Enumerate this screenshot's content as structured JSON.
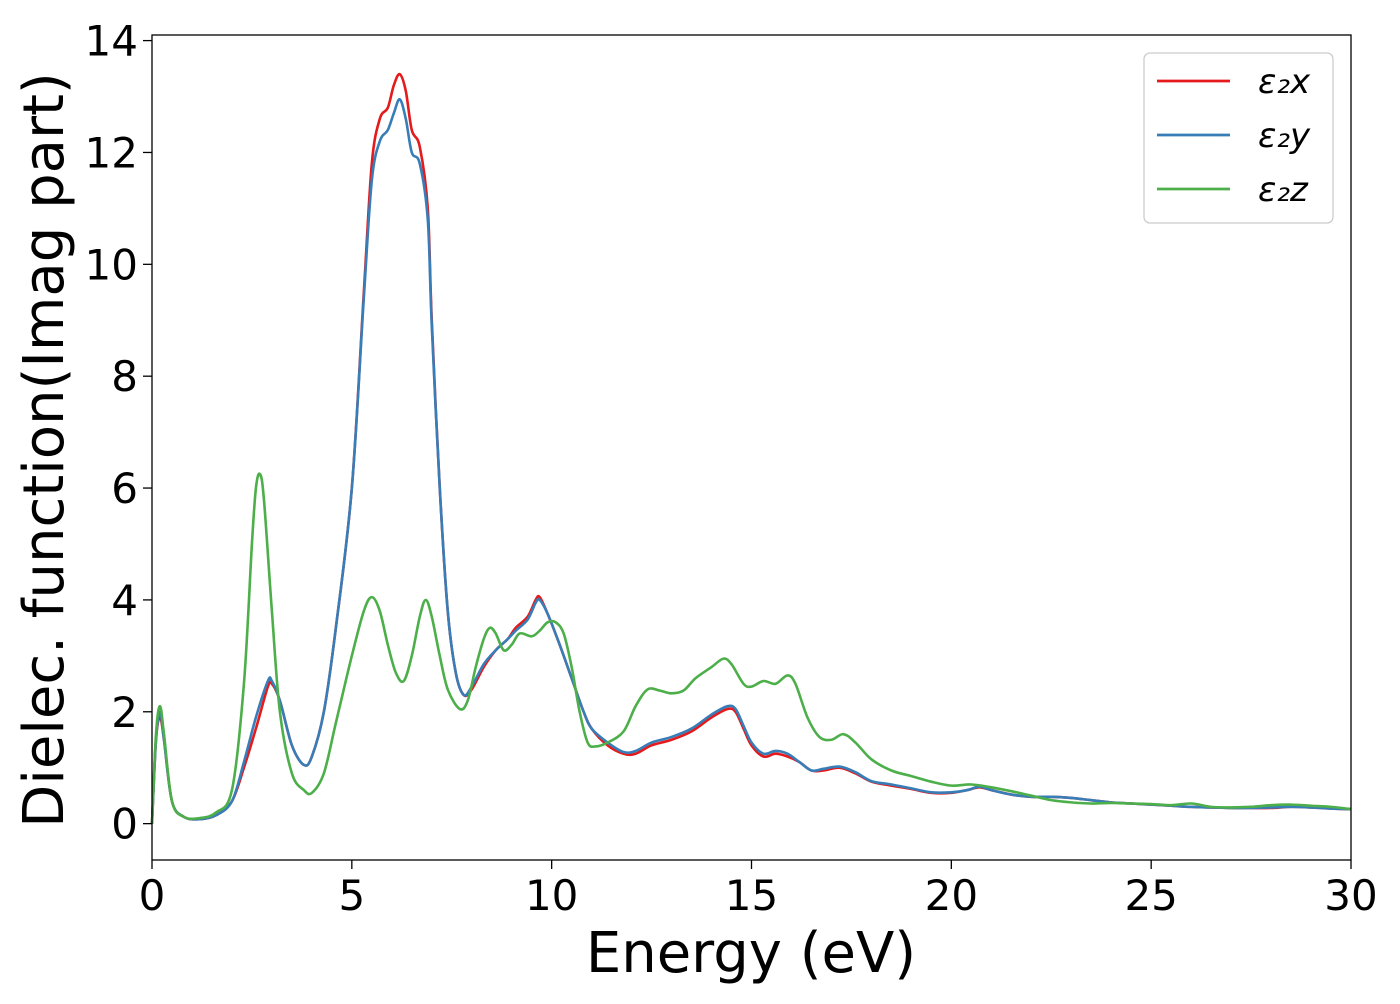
{
  "chart_data": {
    "type": "line",
    "title": "",
    "xlabel": "Energy (eV)",
    "ylabel": "Dielec. function(Imag part)",
    "xlim": [
      0,
      30
    ],
    "ylim": [
      -0.65,
      14.1
    ],
    "xticks": [
      0,
      5,
      10,
      15,
      20,
      25,
      30
    ],
    "yticks": [
      0,
      2,
      4,
      6,
      8,
      10,
      12,
      14
    ],
    "grid": false,
    "legend_position": "top-right",
    "series": [
      {
        "name": "ε₂x",
        "color": "#e41a1c",
        "points": [
          [
            0,
            0
          ],
          [
            0.1,
            1.5
          ],
          [
            0.2,
            1.9
          ],
          [
            0.3,
            1.5
          ],
          [
            0.5,
            0.4
          ],
          [
            0.8,
            0.12
          ],
          [
            1.2,
            0.08
          ],
          [
            1.6,
            0.15
          ],
          [
            2.0,
            0.4
          ],
          [
            2.3,
            1.0
          ],
          [
            2.6,
            1.7
          ],
          [
            2.9,
            2.45
          ],
          [
            3.0,
            2.5
          ],
          [
            3.2,
            2.2
          ],
          [
            3.5,
            1.4
          ],
          [
            3.8,
            1.05
          ],
          [
            4.0,
            1.2
          ],
          [
            4.3,
            2.0
          ],
          [
            4.6,
            3.5
          ],
          [
            5.0,
            6.0
          ],
          [
            5.3,
            9.5
          ],
          [
            5.5,
            11.8
          ],
          [
            5.7,
            12.6
          ],
          [
            5.9,
            12.8
          ],
          [
            6.05,
            13.2
          ],
          [
            6.2,
            13.4
          ],
          [
            6.35,
            13.1
          ],
          [
            6.5,
            12.4
          ],
          [
            6.7,
            12.1
          ],
          [
            6.9,
            11.0
          ],
          [
            7.0,
            9.0
          ],
          [
            7.2,
            6.0
          ],
          [
            7.4,
            3.8
          ],
          [
            7.6,
            2.7
          ],
          [
            7.8,
            2.3
          ],
          [
            8.0,
            2.4
          ],
          [
            8.3,
            2.8
          ],
          [
            8.6,
            3.1
          ],
          [
            8.9,
            3.3
          ],
          [
            9.1,
            3.5
          ],
          [
            9.4,
            3.7
          ],
          [
            9.6,
            4.0
          ],
          [
            9.7,
            4.05
          ],
          [
            9.9,
            3.75
          ],
          [
            10.2,
            3.2
          ],
          [
            10.5,
            2.6
          ],
          [
            10.8,
            2.0
          ],
          [
            11.0,
            1.7
          ],
          [
            11.4,
            1.4
          ],
          [
            11.8,
            1.25
          ],
          [
            12.1,
            1.25
          ],
          [
            12.5,
            1.4
          ],
          [
            13.0,
            1.5
          ],
          [
            13.5,
            1.65
          ],
          [
            14.0,
            1.9
          ],
          [
            14.4,
            2.05
          ],
          [
            14.6,
            2.0
          ],
          [
            14.8,
            1.7
          ],
          [
            15.0,
            1.4
          ],
          [
            15.3,
            1.2
          ],
          [
            15.6,
            1.25
          ],
          [
            15.9,
            1.2
          ],
          [
            16.2,
            1.1
          ],
          [
            16.5,
            0.95
          ],
          [
            16.8,
            0.95
          ],
          [
            17.2,
            1.0
          ],
          [
            17.6,
            0.9
          ],
          [
            18.0,
            0.75
          ],
          [
            18.5,
            0.68
          ],
          [
            19.0,
            0.62
          ],
          [
            19.5,
            0.55
          ],
          [
            20.0,
            0.55
          ],
          [
            20.4,
            0.6
          ],
          [
            20.7,
            0.65
          ],
          [
            21.0,
            0.6
          ],
          [
            21.5,
            0.52
          ],
          [
            22.0,
            0.48
          ],
          [
            22.5,
            0.48
          ],
          [
            23.0,
            0.46
          ],
          [
            23.5,
            0.42
          ],
          [
            24.0,
            0.38
          ],
          [
            24.5,
            0.36
          ],
          [
            25.0,
            0.34
          ],
          [
            25.5,
            0.32
          ],
          [
            26.0,
            0.3
          ],
          [
            26.5,
            0.29
          ],
          [
            27.0,
            0.28
          ],
          [
            27.5,
            0.28
          ],
          [
            28.0,
            0.28
          ],
          [
            28.5,
            0.3
          ],
          [
            29.0,
            0.29
          ],
          [
            29.5,
            0.27
          ],
          [
            30.0,
            0.26
          ]
        ]
      },
      {
        "name": "ε₂y",
        "color": "#377eb8",
        "points": [
          [
            0,
            0
          ],
          [
            0.1,
            1.5
          ],
          [
            0.2,
            2.0
          ],
          [
            0.3,
            1.5
          ],
          [
            0.5,
            0.4
          ],
          [
            0.8,
            0.12
          ],
          [
            1.2,
            0.08
          ],
          [
            1.6,
            0.15
          ],
          [
            2.0,
            0.4
          ],
          [
            2.3,
            1.1
          ],
          [
            2.6,
            1.9
          ],
          [
            2.9,
            2.55
          ],
          [
            3.0,
            2.55
          ],
          [
            3.2,
            2.2
          ],
          [
            3.5,
            1.4
          ],
          [
            3.8,
            1.05
          ],
          [
            4.0,
            1.2
          ],
          [
            4.3,
            2.0
          ],
          [
            4.6,
            3.5
          ],
          [
            5.0,
            6.0
          ],
          [
            5.3,
            9.4
          ],
          [
            5.5,
            11.5
          ],
          [
            5.7,
            12.2
          ],
          [
            5.9,
            12.4
          ],
          [
            6.05,
            12.7
          ],
          [
            6.2,
            12.95
          ],
          [
            6.35,
            12.6
          ],
          [
            6.5,
            12.0
          ],
          [
            6.7,
            11.8
          ],
          [
            6.9,
            10.8
          ],
          [
            7.0,
            8.9
          ],
          [
            7.2,
            6.0
          ],
          [
            7.4,
            3.8
          ],
          [
            7.6,
            2.7
          ],
          [
            7.8,
            2.3
          ],
          [
            8.0,
            2.45
          ],
          [
            8.3,
            2.85
          ],
          [
            8.6,
            3.1
          ],
          [
            8.9,
            3.3
          ],
          [
            9.1,
            3.45
          ],
          [
            9.4,
            3.65
          ],
          [
            9.6,
            3.95
          ],
          [
            9.7,
            4.0
          ],
          [
            9.9,
            3.75
          ],
          [
            10.2,
            3.2
          ],
          [
            10.5,
            2.6
          ],
          [
            10.8,
            2.0
          ],
          [
            11.0,
            1.7
          ],
          [
            11.4,
            1.45
          ],
          [
            11.8,
            1.28
          ],
          [
            12.1,
            1.3
          ],
          [
            12.5,
            1.45
          ],
          [
            13.0,
            1.55
          ],
          [
            13.5,
            1.7
          ],
          [
            14.0,
            1.95
          ],
          [
            14.4,
            2.1
          ],
          [
            14.6,
            2.05
          ],
          [
            14.8,
            1.75
          ],
          [
            15.0,
            1.45
          ],
          [
            15.3,
            1.25
          ],
          [
            15.6,
            1.3
          ],
          [
            15.9,
            1.25
          ],
          [
            16.2,
            1.1
          ],
          [
            16.5,
            0.95
          ],
          [
            16.8,
            0.98
          ],
          [
            17.2,
            1.02
          ],
          [
            17.6,
            0.92
          ],
          [
            18.0,
            0.76
          ],
          [
            18.5,
            0.7
          ],
          [
            19.0,
            0.63
          ],
          [
            19.5,
            0.56
          ],
          [
            20.0,
            0.56
          ],
          [
            20.4,
            0.6
          ],
          [
            20.7,
            0.66
          ],
          [
            21.0,
            0.6
          ],
          [
            21.5,
            0.52
          ],
          [
            22.0,
            0.48
          ],
          [
            22.5,
            0.48
          ],
          [
            23.0,
            0.46
          ],
          [
            23.5,
            0.42
          ],
          [
            24.0,
            0.38
          ],
          [
            24.5,
            0.36
          ],
          [
            25.0,
            0.34
          ],
          [
            25.5,
            0.32
          ],
          [
            26.0,
            0.3
          ],
          [
            26.5,
            0.29
          ],
          [
            27.0,
            0.28
          ],
          [
            27.5,
            0.28
          ],
          [
            28.0,
            0.29
          ],
          [
            28.5,
            0.3
          ],
          [
            29.0,
            0.29
          ],
          [
            29.5,
            0.27
          ],
          [
            30.0,
            0.26
          ]
        ]
      },
      {
        "name": "ε₂z",
        "color": "#4daf4a",
        "points": [
          [
            0,
            0
          ],
          [
            0.1,
            1.6
          ],
          [
            0.2,
            2.1
          ],
          [
            0.3,
            1.6
          ],
          [
            0.5,
            0.4
          ],
          [
            0.8,
            0.12
          ],
          [
            1.2,
            0.1
          ],
          [
            1.6,
            0.2
          ],
          [
            2.0,
            0.6
          ],
          [
            2.3,
            2.5
          ],
          [
            2.5,
            5.0
          ],
          [
            2.6,
            6.0
          ],
          [
            2.7,
            6.25
          ],
          [
            2.8,
            5.8
          ],
          [
            3.0,
            3.8
          ],
          [
            3.2,
            2.0
          ],
          [
            3.5,
            0.9
          ],
          [
            3.8,
            0.6
          ],
          [
            4.0,
            0.55
          ],
          [
            4.3,
            0.9
          ],
          [
            4.6,
            1.8
          ],
          [
            5.0,
            3.0
          ],
          [
            5.3,
            3.8
          ],
          [
            5.5,
            4.05
          ],
          [
            5.7,
            3.8
          ],
          [
            5.9,
            3.2
          ],
          [
            6.1,
            2.7
          ],
          [
            6.3,
            2.55
          ],
          [
            6.5,
            3.0
          ],
          [
            6.7,
            3.7
          ],
          [
            6.85,
            4.0
          ],
          [
            7.0,
            3.7
          ],
          [
            7.2,
            3.0
          ],
          [
            7.4,
            2.4
          ],
          [
            7.7,
            2.05
          ],
          [
            7.9,
            2.2
          ],
          [
            8.1,
            2.8
          ],
          [
            8.3,
            3.3
          ],
          [
            8.45,
            3.5
          ],
          [
            8.6,
            3.4
          ],
          [
            8.8,
            3.1
          ],
          [
            9.0,
            3.2
          ],
          [
            9.2,
            3.4
          ],
          [
            9.5,
            3.35
          ],
          [
            9.7,
            3.45
          ],
          [
            9.9,
            3.6
          ],
          [
            10.1,
            3.6
          ],
          [
            10.3,
            3.4
          ],
          [
            10.5,
            2.8
          ],
          [
            10.7,
            2.0
          ],
          [
            10.9,
            1.45
          ],
          [
            11.1,
            1.38
          ],
          [
            11.4,
            1.45
          ],
          [
            11.8,
            1.65
          ],
          [
            12.1,
            2.1
          ],
          [
            12.4,
            2.4
          ],
          [
            12.7,
            2.38
          ],
          [
            13.0,
            2.33
          ],
          [
            13.3,
            2.38
          ],
          [
            13.6,
            2.6
          ],
          [
            14.0,
            2.8
          ],
          [
            14.3,
            2.95
          ],
          [
            14.5,
            2.85
          ],
          [
            14.8,
            2.5
          ],
          [
            15.0,
            2.45
          ],
          [
            15.3,
            2.55
          ],
          [
            15.6,
            2.5
          ],
          [
            15.9,
            2.65
          ],
          [
            16.1,
            2.5
          ],
          [
            16.4,
            1.9
          ],
          [
            16.7,
            1.55
          ],
          [
            17.0,
            1.5
          ],
          [
            17.3,
            1.6
          ],
          [
            17.6,
            1.45
          ],
          [
            18.0,
            1.15
          ],
          [
            18.5,
            0.95
          ],
          [
            19.0,
            0.85
          ],
          [
            19.5,
            0.75
          ],
          [
            20.0,
            0.68
          ],
          [
            20.5,
            0.7
          ],
          [
            21.0,
            0.65
          ],
          [
            21.5,
            0.58
          ],
          [
            22.0,
            0.5
          ],
          [
            22.5,
            0.42
          ],
          [
            23.0,
            0.38
          ],
          [
            23.5,
            0.36
          ],
          [
            24.0,
            0.37
          ],
          [
            24.5,
            0.36
          ],
          [
            25.0,
            0.35
          ],
          [
            25.5,
            0.33
          ],
          [
            26.0,
            0.36
          ],
          [
            26.5,
            0.3
          ],
          [
            27.0,
            0.29
          ],
          [
            27.5,
            0.3
          ],
          [
            28.0,
            0.33
          ],
          [
            28.5,
            0.34
          ],
          [
            29.0,
            0.32
          ],
          [
            29.5,
            0.3
          ],
          [
            30.0,
            0.26
          ]
        ]
      }
    ]
  }
}
